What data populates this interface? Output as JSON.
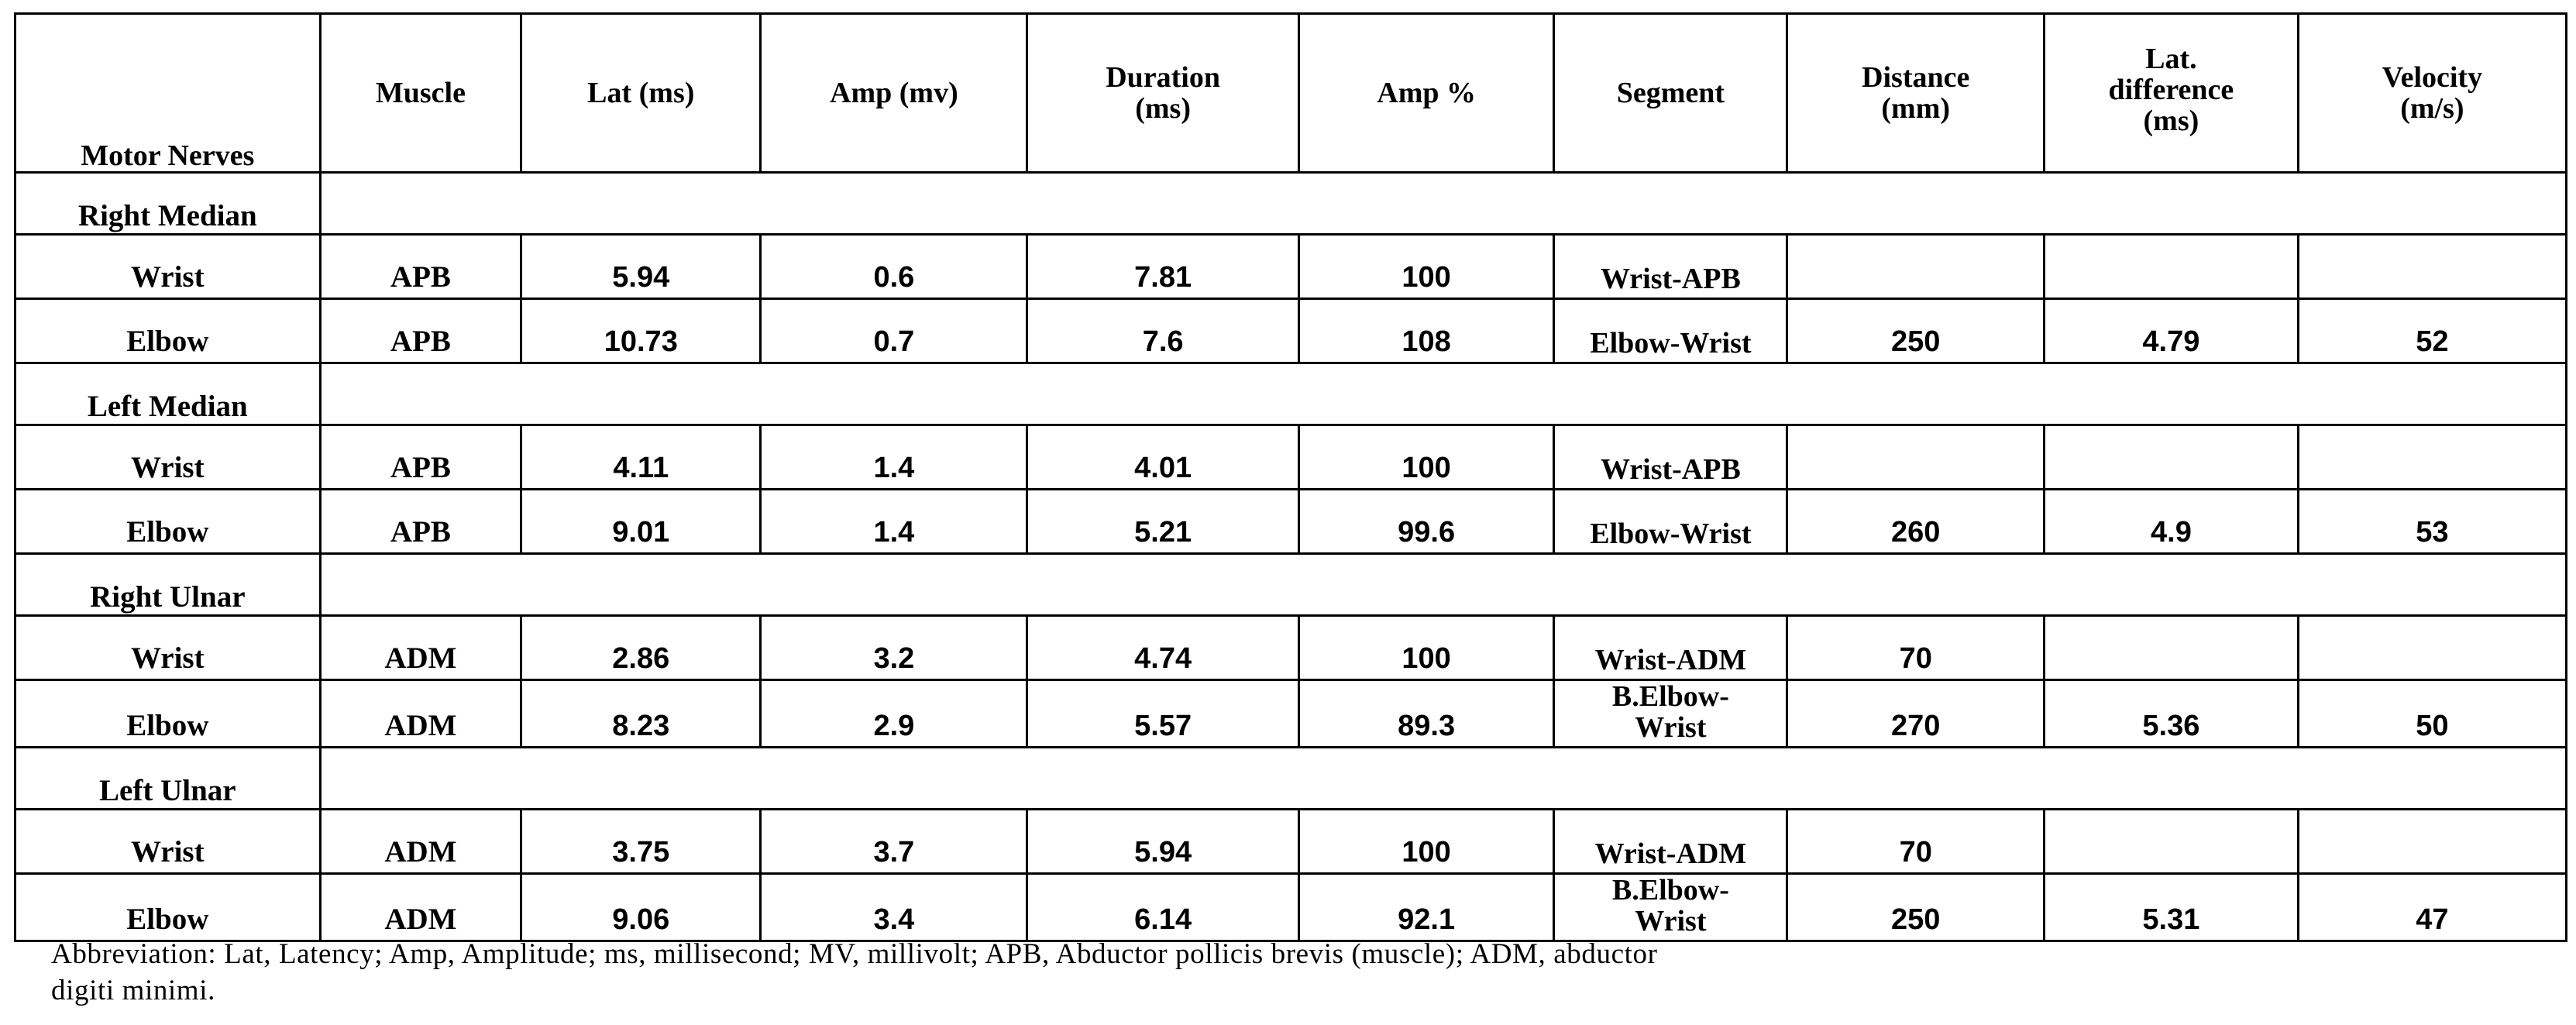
{
  "headers": {
    "nerves": "Motor Nerves",
    "muscle": "Muscle",
    "lat": "Lat (ms)",
    "amp": "Amp (mv)",
    "duration_1": "Duration",
    "duration_2": "(ms)",
    "amp_pct": "Amp %",
    "segment": "Segment",
    "distance_1": "Distance",
    "distance_2": "(mm)",
    "latdiff_1": "Lat.",
    "latdiff_2": "difference",
    "latdiff_3": "(ms)",
    "velocity_1": "Velocity",
    "velocity_2": "(m/s)"
  },
  "groups": [
    {
      "name": "Right Median",
      "rows": [
        {
          "site": "Wrist",
          "muscle": "APB",
          "lat": "5.94",
          "amp": "0.6",
          "duration": "7.81",
          "amp_pct": "100",
          "segment_1": "Wrist-APB",
          "segment_2": "",
          "distance": "",
          "lat_diff": "",
          "velocity": ""
        },
        {
          "site": "Elbow",
          "muscle": "APB",
          "lat": "10.73",
          "amp": "0.7",
          "duration": "7.6",
          "amp_pct": "108",
          "segment_1": "Elbow-Wrist",
          "segment_2": "",
          "distance": "250",
          "lat_diff": "4.79",
          "velocity": "52"
        }
      ]
    },
    {
      "name": "Left Median",
      "rows": [
        {
          "site": "Wrist",
          "muscle": "APB",
          "lat": "4.11",
          "amp": "1.4",
          "duration": "4.01",
          "amp_pct": "100",
          "segment_1": "Wrist-APB",
          "segment_2": "",
          "distance": "",
          "lat_diff": "",
          "velocity": ""
        },
        {
          "site": "Elbow",
          "muscle": "APB",
          "lat": "9.01",
          "amp": "1.4",
          "duration": "5.21",
          "amp_pct": "99.6",
          "segment_1": "Elbow-Wrist",
          "segment_2": "",
          "distance": "260",
          "lat_diff": "4.9",
          "velocity": "53"
        }
      ]
    },
    {
      "name": "Right Ulnar",
      "rows": [
        {
          "site": "Wrist",
          "muscle": "ADM",
          "lat": "2.86",
          "amp": "3.2",
          "duration": "4.74",
          "amp_pct": "100",
          "segment_1": "Wrist-ADM",
          "segment_2": "",
          "distance": "70",
          "lat_diff": "",
          "velocity": ""
        },
        {
          "site": "Elbow",
          "muscle": "ADM",
          "lat": "8.23",
          "amp": "2.9",
          "duration": "5.57",
          "amp_pct": "89.3",
          "segment_1": "B.Elbow-",
          "segment_2": "Wrist",
          "distance": "270",
          "lat_diff": "5.36",
          "velocity": "50"
        }
      ]
    },
    {
      "name": "Left Ulnar",
      "rows": [
        {
          "site": "Wrist",
          "muscle": "ADM",
          "lat": "3.75",
          "amp": "3.7",
          "duration": "5.94",
          "amp_pct": "100",
          "segment_1": "Wrist-ADM",
          "segment_2": "",
          "distance": "70",
          "lat_diff": "",
          "velocity": ""
        },
        {
          "site": "Elbow",
          "muscle": "ADM",
          "lat": "9.06",
          "amp": "3.4",
          "duration": "6.14",
          "amp_pct": "92.1",
          "segment_1": "B.Elbow-",
          "segment_2": "Wrist",
          "distance": "250",
          "lat_diff": "5.31",
          "velocity": "47"
        }
      ]
    }
  ],
  "footnote": {
    "line_1": "Abbreviation: Lat, Latency; Amp, Amplitude; ms, millisecond; MV, millivolt; APB, Abductor pollicis brevis (muscle); ADM, abductor",
    "line_2": "digiti minimi."
  }
}
